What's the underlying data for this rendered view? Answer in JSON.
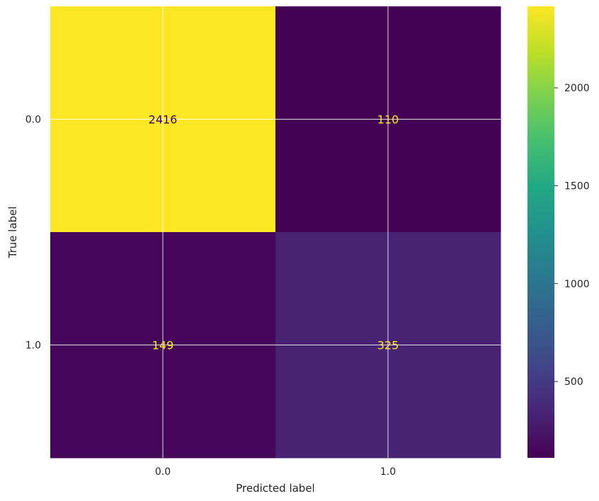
{
  "chart_data": {
    "type": "heatmap",
    "title": "",
    "xlabel": "Predicted label",
    "ylabel": "True label",
    "x_categories": [
      "0.0",
      "1.0"
    ],
    "y_categories": [
      "0.0",
      "1.0"
    ],
    "values": [
      [
        2416,
        110
      ],
      [
        149,
        325
      ]
    ],
    "colormap": "viridis",
    "colorbar": {
      "min": 110,
      "max": 2416,
      "ticks": [
        500,
        1000,
        1500,
        2000
      ],
      "tick_labels": [
        "500",
        "1000",
        "1500",
        "2000"
      ]
    },
    "grid": true,
    "cell_text_colors": {
      "on_light": "#440154",
      "on_dark": "#fde725"
    }
  }
}
